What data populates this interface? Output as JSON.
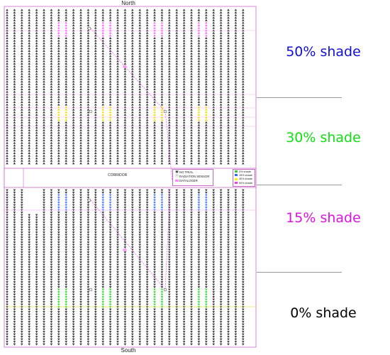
{
  "compass": {
    "north": "North",
    "south": "South"
  },
  "zones": [
    {
      "label": "50% shade",
      "color": "#1010d8"
    },
    {
      "label": "30% shade",
      "color": "#10e010"
    },
    {
      "label": "15% shade",
      "color": "#e010e0"
    },
    {
      "label": "0% shade",
      "color": "#000000"
    }
  ],
  "corridor": {
    "label": "CORRIDOR"
  },
  "legend": {
    "items": [
      {
        "label": "NO TRIAL",
        "symbol": "square-dot"
      },
      {
        "label": "RADIATION SENSOR",
        "symbol": "circle-r"
      },
      {
        "label": "DATALOGER",
        "symbol": "pink-rect"
      }
    ]
  },
  "shade_legend": {
    "items": [
      {
        "label": "0% shade",
        "color": "#33cc33"
      },
      {
        "label": "15% shade",
        "color": "#3366ff"
      },
      {
        "label": "30% shade",
        "color": "#ffee00"
      },
      {
        "label": "50% shade",
        "color": "#ff33ff"
      }
    ]
  },
  "colors": {
    "tree": "#3a3a3a",
    "north_trial_50": "#ff66ff",
    "north_trial_30": "#f0e000",
    "south_trial_15": "#4477ff",
    "south_trial_0": "#33dd33",
    "border": "#cc66cc",
    "diagonal": "#ff33ff",
    "separator": "#9a9a9a"
  },
  "icons": {
    "tree": "tree-arrow-icon",
    "radiation_sensor": "radiation-sensor-icon",
    "datalogger": "datalogger-icon"
  }
}
